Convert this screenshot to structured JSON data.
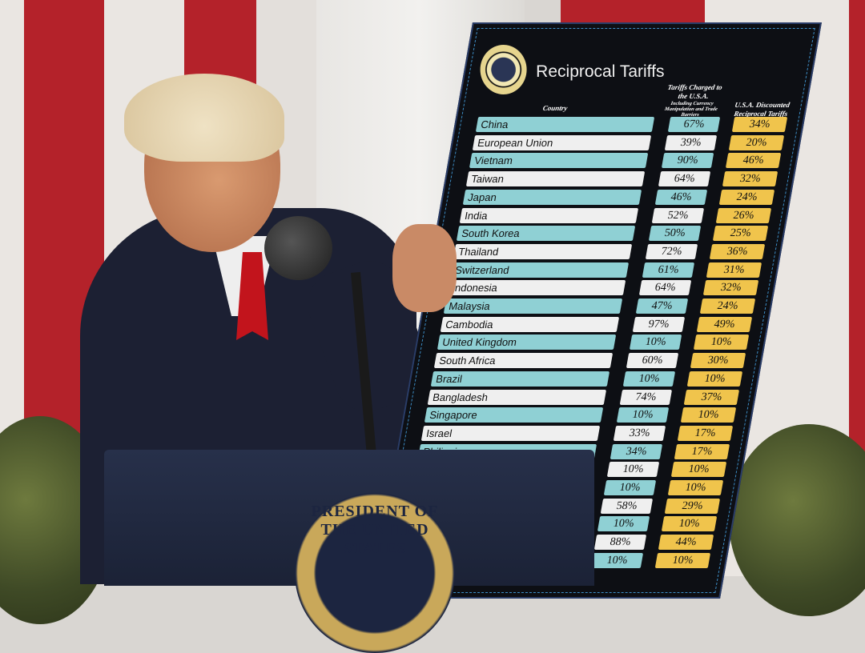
{
  "scene": {
    "description_colors": {
      "flag_red": "#b4222a",
      "flag_white": "#eae6e2",
      "suit": "#1c2033",
      "tie": "#c2141c",
      "board": "#0d0f14"
    }
  },
  "board": {
    "title": "Reciprocal Tariffs",
    "seal_text": "SEAL OF THE PRESIDENT OF THE UNITED STATES",
    "headers": {
      "country": "Country",
      "charged": "Tariffs Charged to the U.S.A.",
      "charged_note": "Including Currency Manipulation and Trade Barriers",
      "discounted": "U.S.A. Discounted Reciprocal Tariffs"
    },
    "rows": [
      {
        "country": "China",
        "charged": "67%",
        "discounted": "34%"
      },
      {
        "country": "European Union",
        "charged": "39%",
        "discounted": "20%"
      },
      {
        "country": "Vietnam",
        "charged": "90%",
        "discounted": "46%"
      },
      {
        "country": "Taiwan",
        "charged": "64%",
        "discounted": "32%"
      },
      {
        "country": "Japan",
        "charged": "46%",
        "discounted": "24%"
      },
      {
        "country": "India",
        "charged": "52%",
        "discounted": "26%"
      },
      {
        "country": "South Korea",
        "charged": "50%",
        "discounted": "25%"
      },
      {
        "country": "Thailand",
        "charged": "72%",
        "discounted": "36%"
      },
      {
        "country": "Switzerland",
        "charged": "61%",
        "discounted": "31%"
      },
      {
        "country": "Indonesia",
        "charged": "64%",
        "discounted": "32%"
      },
      {
        "country": "Malaysia",
        "charged": "47%",
        "discounted": "24%"
      },
      {
        "country": "Cambodia",
        "charged": "97%",
        "discounted": "49%"
      },
      {
        "country": "United Kingdom",
        "charged": "10%",
        "discounted": "10%"
      },
      {
        "country": "South Africa",
        "charged": "60%",
        "discounted": "30%"
      },
      {
        "country": "Brazil",
        "charged": "10%",
        "discounted": "10%"
      },
      {
        "country": "Bangladesh",
        "charged": "74%",
        "discounted": "37%"
      },
      {
        "country": "Singapore",
        "charged": "10%",
        "discounted": "10%"
      },
      {
        "country": "Israel",
        "charged": "33%",
        "discounted": "17%"
      },
      {
        "country": "Philippines",
        "charged": "34%",
        "discounted": "17%"
      },
      {
        "charged": "10%",
        "discounted": "10%"
      },
      {
        "charged": "10%",
        "discounted": "10%"
      },
      {
        "charged": "58%",
        "discounted": "29%"
      },
      {
        "charged": "10%",
        "discounted": "10%"
      },
      {
        "charged": "88%",
        "discounted": "44%"
      },
      {
        "charged": "10%",
        "discounted": "10%"
      }
    ]
  },
  "podium": {
    "seal_text": "PRESIDENT OF THE UNITED STATES"
  }
}
